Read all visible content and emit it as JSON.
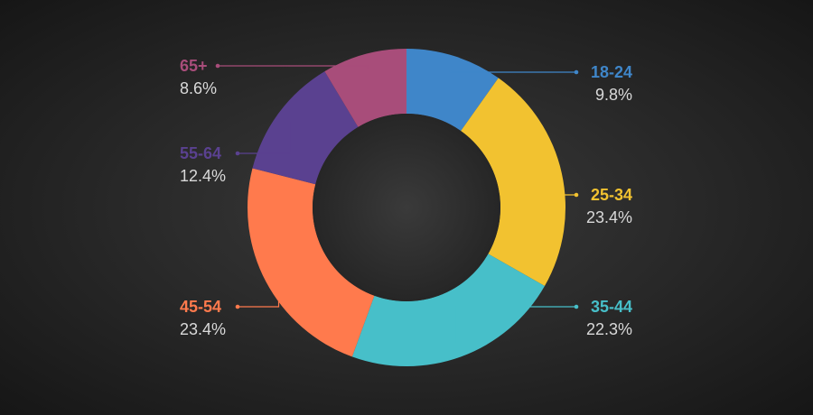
{
  "chart_data": {
    "type": "pie",
    "variant": "donut",
    "title": "",
    "categories": [
      "18-24",
      "25-34",
      "35-44",
      "45-54",
      "55-64",
      "65+"
    ],
    "values": [
      9.8,
      23.4,
      22.3,
      23.4,
      12.4,
      8.6
    ],
    "value_labels": [
      "9.8%",
      "23.4%",
      "22.3%",
      "23.4%",
      "12.4%",
      "8.6%"
    ],
    "colors": [
      "#3f86c9",
      "#f2c230",
      "#47bfc9",
      "#ff7a4d",
      "#5a4190",
      "#a84d7a"
    ],
    "legend": "callout labels with leader lines"
  }
}
